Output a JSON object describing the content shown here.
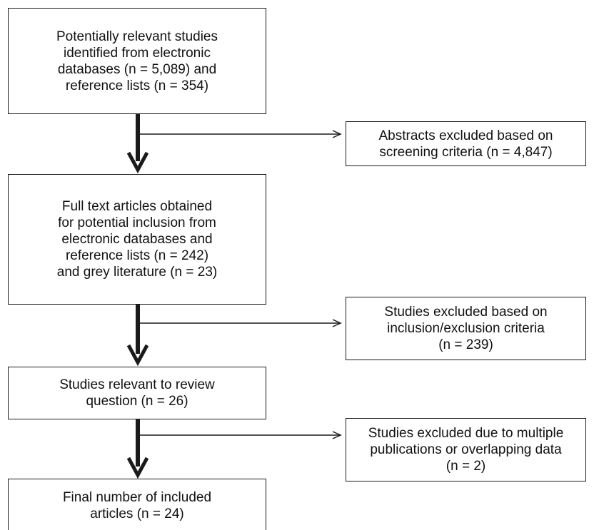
{
  "boxes": {
    "identified": "Potentially relevant studies\nidentified from electronic\ndatabases (n = 5,089) and\nreference lists (n = 354)",
    "fulltext": "Full text articles obtained\nfor potential inclusion from\nelectronic databases and\nreference lists (n = 242)\nand grey literature (n = 23)",
    "relevant": "Studies relevant to review\nquestion (n = 26)",
    "final": "Final number of included\narticles (n = 24)"
  },
  "exclusions": {
    "abstracts": "Abstracts excluded based on\nscreening criteria (n = 4,847)",
    "criteria": "Studies excluded based on\ninclusion/exclusion criteria\n(n = 239)",
    "duplicates": "Studies excluded due to multiple\npublications or overlapping data\n(n = 2)"
  }
}
